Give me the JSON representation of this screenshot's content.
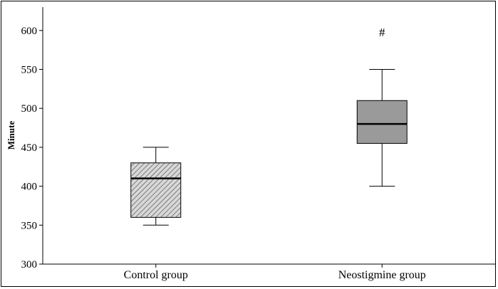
{
  "chart_data": {
    "type": "box",
    "title": "",
    "xlabel": "",
    "ylabel": "Minute",
    "ylim": [
      300,
      630
    ],
    "yticks": [
      300,
      350,
      400,
      450,
      500,
      550,
      600
    ],
    "grid": false,
    "categories": [
      "Control group",
      "Neostigmine group"
    ],
    "boxes": [
      {
        "category": "Control group",
        "min": 350,
        "q1": 360,
        "median": 410,
        "q3": 430,
        "max": 450,
        "fill": "hatched",
        "color": "#d8d8d8"
      },
      {
        "category": "Neostigmine group",
        "min": 400,
        "q1": 455,
        "median": 480,
        "q3": 510,
        "max": 550,
        "fill": "solid",
        "color": "#9a9a9a"
      }
    ],
    "annotations": [
      {
        "text": "#",
        "category": "Neostigmine group",
        "y": 598
      }
    ]
  }
}
